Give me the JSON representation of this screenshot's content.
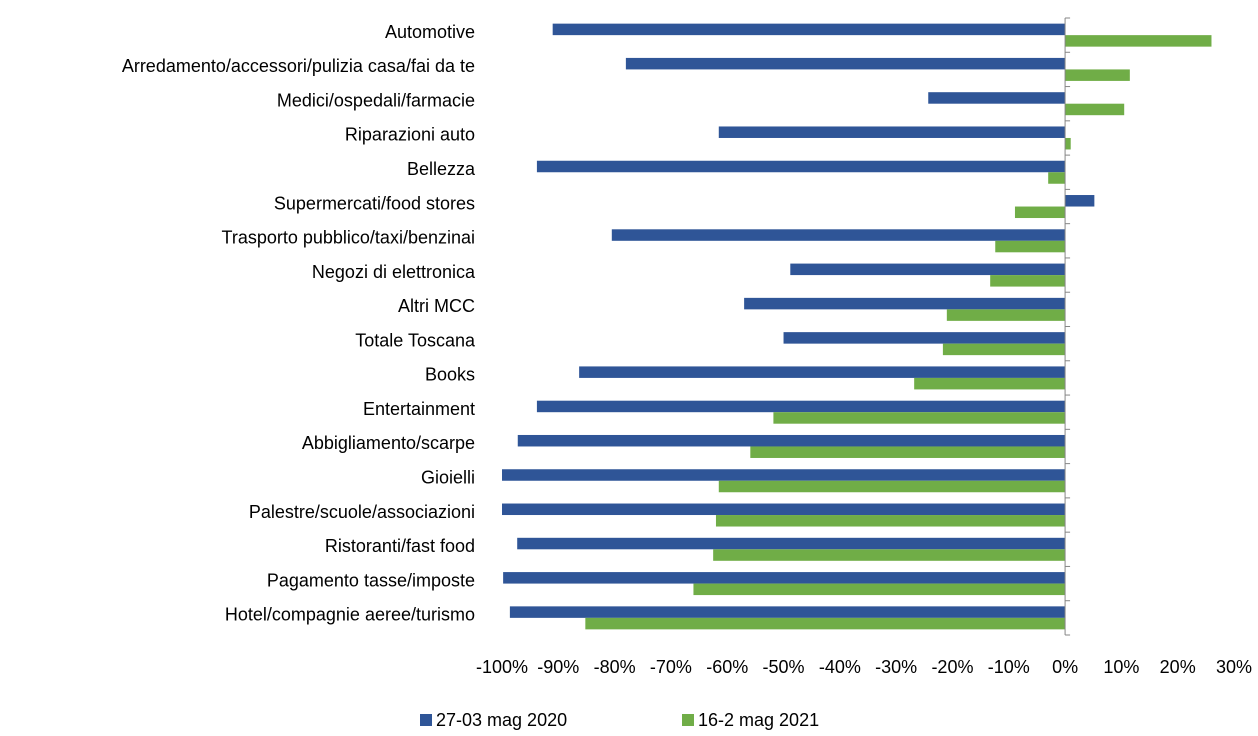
{
  "chart_data": {
    "type": "hbar",
    "categories": [
      "Automotive",
      "Arredamento/accessori/pulizia casa/fai da te",
      "Medici/ospedali/farmacie",
      "Riparazioni auto",
      "Bellezza",
      "Supermercati/food stores",
      "Trasporto pubblico/taxi/benzinai",
      "Negozi di elettronica",
      "Altri MCC",
      "Totale Toscana",
      "Books",
      "Entertainment",
      "Abbigliamento/scarpe",
      "Gioielli",
      "Palestre/scuole/associazioni",
      "Ristoranti/fast food",
      "Pagamento tasse/imposte",
      "Hotel/compagnie aeree/turismo"
    ],
    "series": [
      {
        "name": "27-03 mag 2020",
        "color": "#2f5597",
        "values": [
          -91,
          -78,
          -24.3,
          -61.5,
          -93.8,
          5.2,
          -80.5,
          -48.8,
          -57,
          -50,
          -86.3,
          -93.8,
          -97.2,
          -100,
          -100,
          -97.3,
          -99.8,
          -98.6
        ]
      },
      {
        "name": "16-2 mag 2021",
        "color": "#70ad47",
        "values": [
          26,
          11.5,
          10.5,
          1,
          -3,
          -8.9,
          -12.4,
          -13.3,
          -21,
          -21.7,
          -26.8,
          -51.8,
          -55.9,
          -61.5,
          -62,
          -62.5,
          -66,
          -85.2
        ]
      }
    ],
    "xlim": [
      -100,
      30
    ],
    "xticks": [
      {
        "value": -100,
        "label": "-100%"
      },
      {
        "value": -90,
        "label": "-90%"
      },
      {
        "value": -80,
        "label": "-80%"
      },
      {
        "value": -70,
        "label": "-70%"
      },
      {
        "value": -60,
        "label": "-60%"
      },
      {
        "value": -50,
        "label": "-50%"
      },
      {
        "value": -40,
        "label": "-40%"
      },
      {
        "value": -30,
        "label": "-30%"
      },
      {
        "value": -20,
        "label": "-20%"
      },
      {
        "value": -10,
        "label": "-10%"
      },
      {
        "value": 0,
        "label": "0%"
      },
      {
        "value": 10,
        "label": "10%"
      },
      {
        "value": 20,
        "label": "20%"
      },
      {
        "value": 30,
        "label": "30%"
      }
    ],
    "grid": false,
    "legend": "bottom"
  }
}
